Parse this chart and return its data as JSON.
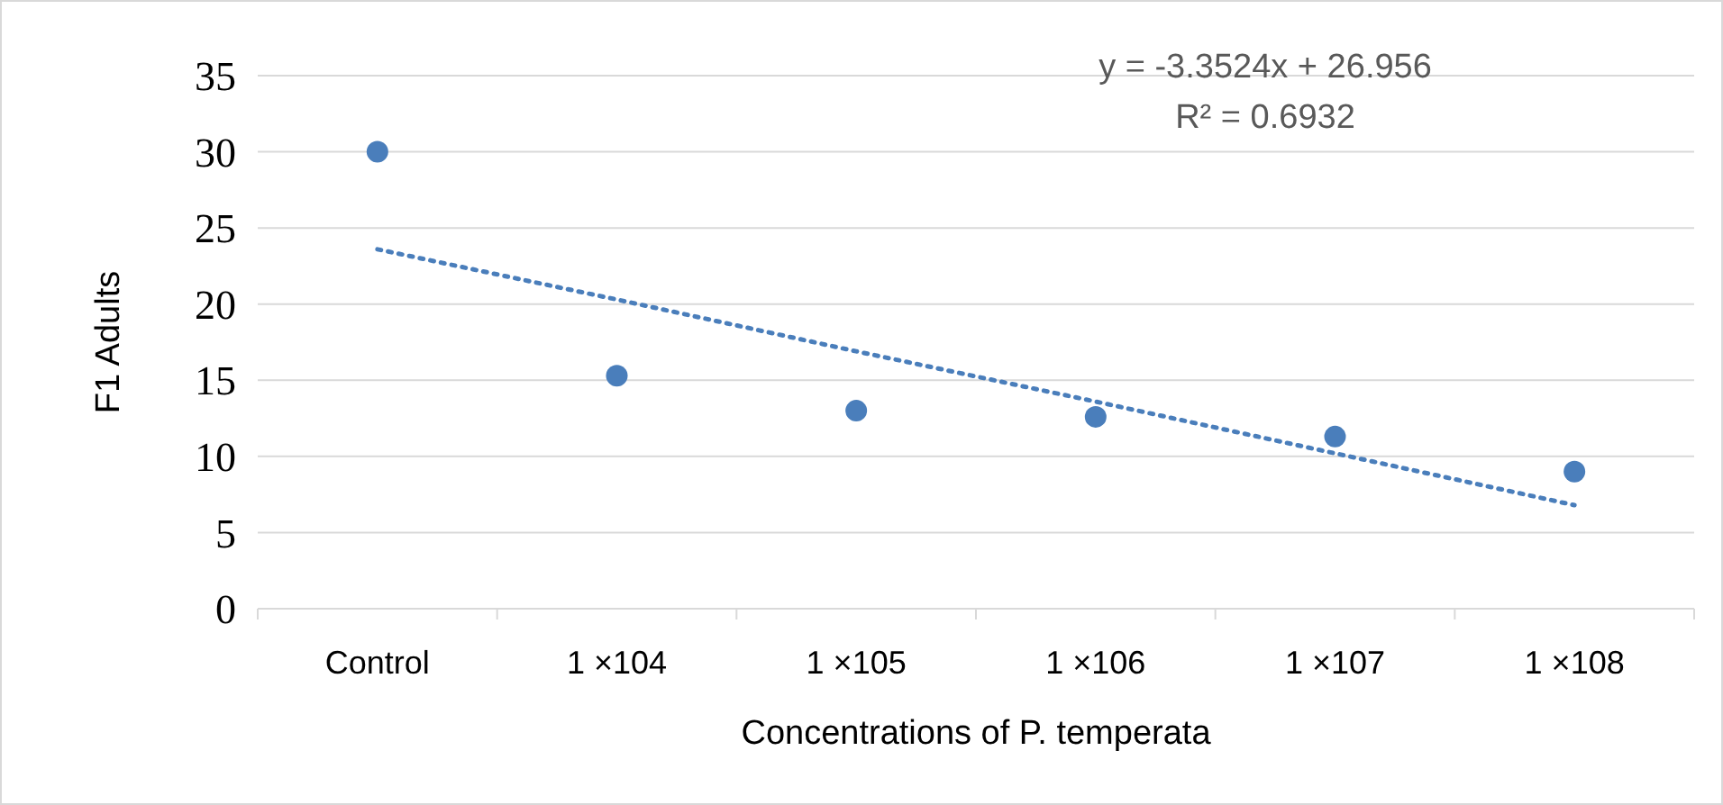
{
  "chart_data": {
    "type": "scatter",
    "xlabel": "Concentrations of P. temperata",
    "ylabel": "F1 Adults",
    "categories": [
      "Control",
      "1 ×104",
      "1 ×105",
      "1 ×106",
      "1 ×107",
      "1 ×108"
    ],
    "series": [
      {
        "color": "#4a7ebb",
        "values": [
          30,
          15.3,
          13,
          12.6,
          11.3,
          9
        ],
        "marker": "circle"
      },
      {
        "type": "line",
        "color": "#4a7ebb",
        "values": [
          23.6,
          20.3,
          16.9,
          13.6,
          10.2,
          6.8
        ],
        "line_style": "dotted"
      }
    ],
    "annotations": [
      "y = -3.3524x + 26.956",
      "R² = 0.6932"
    ],
    "ylim": [
      0,
      35
    ],
    "yticks": [
      0,
      5,
      10,
      15,
      20,
      25,
      30,
      35
    ],
    "grid": "y"
  }
}
